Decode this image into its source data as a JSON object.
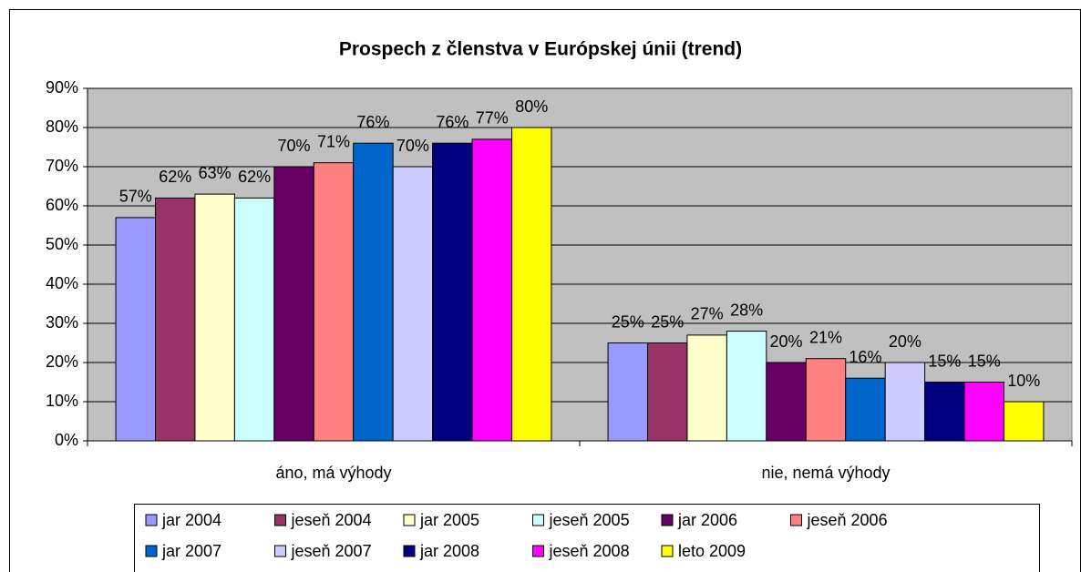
{
  "chart_data": {
    "type": "bar",
    "title": "Prospech z členstva v Európskej únii (trend)",
    "categories": [
      "áno, má výhody",
      "nie, nemá výhody"
    ],
    "ylim": [
      0,
      90
    ],
    "yticks": [
      {
        "value": 0,
        "label": "0%"
      },
      {
        "value": 10,
        "label": "10%"
      },
      {
        "value": 20,
        "label": "20%"
      },
      {
        "value": 30,
        "label": "30%"
      },
      {
        "value": 40,
        "label": "40%"
      },
      {
        "value": 50,
        "label": "50%"
      },
      {
        "value": 60,
        "label": "60%"
      },
      {
        "value": 70,
        "label": "70%"
      },
      {
        "value": 80,
        "label": "80%"
      },
      {
        "value": 90,
        "label": "90%"
      }
    ],
    "grid": true,
    "legend": "bottom",
    "series": [
      {
        "name": "jar 2004",
        "color": "#9999ff",
        "values": [
          57,
          25
        ],
        "value_labels": [
          "57%",
          "25%"
        ]
      },
      {
        "name": "jeseň 2004",
        "color": "#993366",
        "values": [
          62,
          25
        ],
        "value_labels": [
          "62%",
          "25%"
        ]
      },
      {
        "name": "jar 2005",
        "color": "#ffffcc",
        "values": [
          63,
          27
        ],
        "value_labels": [
          "63%",
          "27%"
        ]
      },
      {
        "name": "jeseň 2005",
        "color": "#ccffff",
        "values": [
          62,
          28
        ],
        "value_labels": [
          "62%",
          "28%"
        ]
      },
      {
        "name": "jar 2006",
        "color": "#660066",
        "values": [
          70,
          20
        ],
        "value_labels": [
          "70%",
          "20%"
        ]
      },
      {
        "name": "jeseň 2006",
        "color": "#ff8080",
        "values": [
          71,
          21
        ],
        "value_labels": [
          "71%",
          "21%"
        ]
      },
      {
        "name": "jar 2007",
        "color": "#0066cc",
        "values": [
          76,
          16
        ],
        "value_labels": [
          "76%",
          "16%"
        ]
      },
      {
        "name": "jeseň 2007",
        "color": "#ccccff",
        "values": [
          70,
          20
        ],
        "value_labels": [
          "70%",
          "20%"
        ]
      },
      {
        "name": "jar 2008",
        "color": "#000080",
        "values": [
          76,
          15
        ],
        "value_labels": [
          "76%",
          "15%"
        ]
      },
      {
        "name": "jeseň 2008",
        "color": "#ff00ff",
        "values": [
          77,
          15
        ],
        "value_labels": [
          "77%",
          "15%"
        ]
      },
      {
        "name": "leto 2009",
        "color": "#ffff00",
        "values": [
          80,
          10
        ],
        "value_labels": [
          "80%",
          "10%"
        ]
      }
    ]
  }
}
